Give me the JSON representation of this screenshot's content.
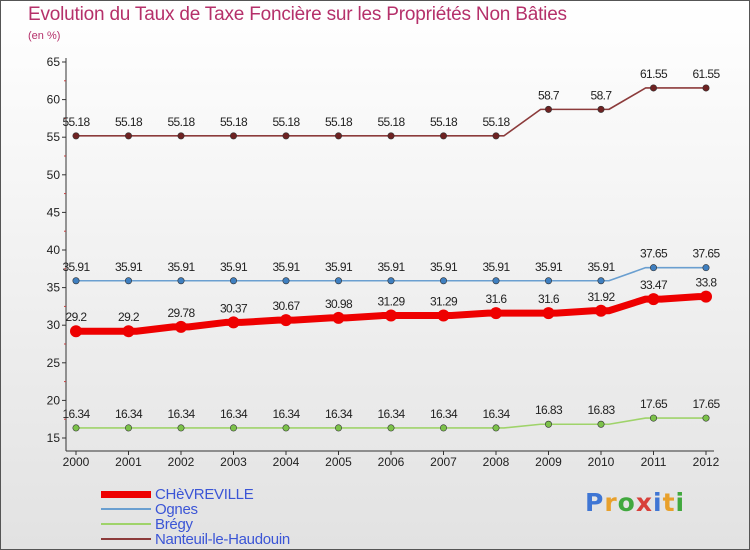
{
  "title": "Evolution du Taux de Taxe Foncière sur les Propriétés Non Bâties",
  "subtitle": "(en %)",
  "logo": {
    "text": "Proxiti",
    "colors": [
      "#3f76d4",
      "#e8a02b",
      "#41a83e",
      "#d8403a",
      "#3f76d4",
      "#e8a02b",
      "#41a83e"
    ]
  },
  "chart_data": {
    "type": "line",
    "title": "Evolution du Taux de Taxe Foncière sur les Propriétés Non Bâties",
    "ylabel": "(en %)",
    "xlabel": "",
    "ylim": [
      15,
      65
    ],
    "yticks": [
      15,
      20,
      25,
      30,
      35,
      40,
      45,
      50,
      55,
      60,
      65
    ],
    "categories": [
      "2000",
      "2001",
      "2002",
      "2003",
      "2004",
      "2005",
      "2006",
      "2007",
      "2008",
      "2009",
      "2010",
      "2011",
      "2012"
    ],
    "series": [
      {
        "name": "CHèVREVILLE",
        "color": "#ee0000",
        "marker_color": "#ee0000",
        "bold": true,
        "values": [
          29.2,
          29.2,
          29.78,
          30.37,
          30.67,
          30.98,
          31.29,
          31.29,
          31.6,
          31.6,
          31.92,
          33.47,
          33.8
        ],
        "labels": [
          "29.2",
          "29.2",
          "29.78",
          "30.37",
          "30.67",
          "30.98",
          "31.29",
          "31.29",
          "31.6",
          "31.6",
          "31.92",
          "33.47",
          "33.8"
        ]
      },
      {
        "name": "Ognes",
        "color": "#6a9fd0",
        "marker_color": "#3f7fc0",
        "bold": false,
        "values": [
          35.91,
          35.91,
          35.91,
          35.91,
          35.91,
          35.91,
          35.91,
          35.91,
          35.91,
          35.91,
          35.91,
          37.65,
          37.65
        ],
        "labels": [
          "35.91",
          "35.91",
          "35.91",
          "35.91",
          "35.91",
          "35.91",
          "35.91",
          "35.91",
          "35.91",
          "35.91",
          "35.91",
          "37.65",
          "37.65"
        ]
      },
      {
        "name": "Brégy",
        "color": "#9fd36a",
        "marker_color": "#7cc24a",
        "bold": false,
        "values": [
          16.34,
          16.34,
          16.34,
          16.34,
          16.34,
          16.34,
          16.34,
          16.34,
          16.34,
          16.83,
          16.83,
          17.65,
          17.65
        ],
        "labels": [
          "16.34",
          "16.34",
          "16.34",
          "16.34",
          "16.34",
          "16.34",
          "16.34",
          "16.34",
          "16.34",
          "16.83",
          "16.83",
          "17.65",
          "17.65"
        ]
      },
      {
        "name": "Nanteuil-le-Haudouin",
        "color": "#8c3b3b",
        "marker_color": "#6e2222",
        "bold": false,
        "values": [
          55.18,
          55.18,
          55.18,
          55.18,
          55.18,
          55.18,
          55.18,
          55.18,
          55.18,
          58.7,
          58.7,
          61.55,
          61.55
        ],
        "labels": [
          "55.18",
          "55.18",
          "55.18",
          "55.18",
          "55.18",
          "55.18",
          "55.18",
          "55.18",
          "55.18",
          "58.7",
          "58.7",
          "61.55",
          "61.55"
        ]
      }
    ],
    "legend_position": "bottom-left"
  }
}
